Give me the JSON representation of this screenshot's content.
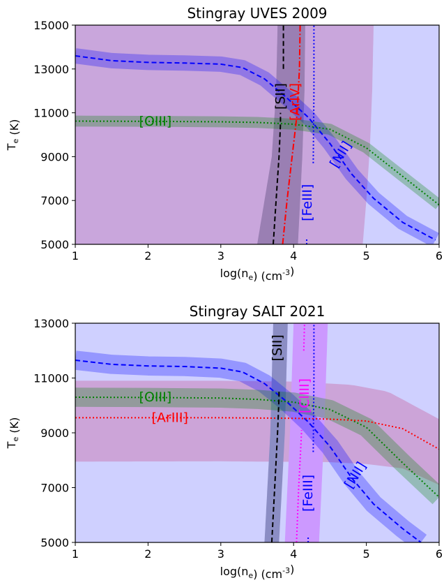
{
  "chart_data": [
    {
      "type": "line",
      "title": "Stingray UVES 2009",
      "xlabel": "log(n_e) (cm^-3)",
      "ylabel": "T_e (K)",
      "xlim": [
        1,
        6
      ],
      "ylim": [
        5000,
        15000
      ],
      "xticks": [
        1,
        2,
        3,
        4,
        5,
        6
      ],
      "yticks": [
        5000,
        7000,
        9000,
        11000,
        13000,
        15000
      ],
      "grid": false,
      "regions": [
        {
          "color": "#cfd0ff",
          "x_from": 1,
          "x_to": 6,
          "y_from": 5000,
          "y_to": 15000
        },
        {
          "color": "#c9a6dc",
          "x_from": 1,
          "y_from": 5000,
          "y_to": 15000,
          "right_edge": [
            [
              4.95,
              5000
            ],
            [
              5.0,
              7000
            ],
            [
              5.05,
              9500
            ],
            [
              5.08,
              12000
            ],
            [
              5.1,
              15000
            ]
          ]
        },
        {
          "color": "#9a7fb3",
          "y_from": 5000,
          "y_to": 15000,
          "left_edge": [
            [
              3.5,
              5000
            ],
            [
              3.7,
              9000
            ],
            [
              3.76,
              12000
            ],
            [
              3.78,
              15000
            ]
          ],
          "right_edge": [
            [
              4.06,
              5000
            ],
            [
              4.12,
              9000
            ],
            [
              4.15,
              12000
            ],
            [
              4.16,
              15000
            ]
          ]
        }
      ],
      "series": [
        {
          "name": "[NII]",
          "color": "#0000ff",
          "style": "dashed",
          "band": 350,
          "x": [
            1,
            1.5,
            2,
            2.5,
            3,
            3.3,
            3.6,
            3.9,
            4.2,
            4.5,
            4.8,
            5.1,
            5.5,
            5.95
          ],
          "y": [
            13600,
            13380,
            13300,
            13270,
            13220,
            13060,
            12550,
            11700,
            10800,
            9600,
            8200,
            7100,
            6000,
            5200
          ]
        },
        {
          "name": "[OIII]",
          "color": "#008000",
          "style": "dotted",
          "band": 250,
          "x": [
            1,
            2,
            3,
            3.5,
            4,
            4.5,
            5,
            5.5,
            6
          ],
          "y": [
            10620,
            10610,
            10590,
            10560,
            10480,
            10250,
            9400,
            8100,
            6800
          ]
        },
        {
          "name": "[SII]",
          "color": "#000000",
          "style": "dashed",
          "x": [
            3.72,
            3.76,
            3.8,
            3.82,
            3.82
          ],
          "y": [
            5000,
            7000,
            9000,
            10500,
            11000
          ]
        },
        {
          "name": "[SII]",
          "color": "#000000",
          "style": "dashed",
          "x": [
            3.86,
            3.86
          ],
          "y": [
            13000,
            15000
          ]
        },
        {
          "name": "[ArIV]",
          "color": "#ff0000",
          "style": "dashdot",
          "x": [
            3.85,
            3.91,
            3.98,
            4.05,
            4.08,
            4.09
          ],
          "y": [
            5000,
            7000,
            9000,
            11000,
            13000,
            15000
          ]
        },
        {
          "name": "[FeIII]",
          "color": "#0000ff",
          "style": "dotted",
          "x": [
            4.27,
            4.28,
            4.28
          ],
          "y": [
            8700,
            12000,
            15000
          ]
        },
        {
          "name": "[FeIII]",
          "color": "#0000ff",
          "style": "dotted",
          "x": [
            4.18,
            4.18
          ],
          "y": [
            5000,
            5300
          ]
        }
      ],
      "annotations": [
        {
          "text": "[OIII]",
          "x": 2.1,
          "y": 10600,
          "color": "#008000",
          "rotation": 0
        },
        {
          "text": "[SII]",
          "x": 3.82,
          "y": 11750,
          "color": "#000000",
          "rotation": -90
        },
        {
          "text": "[ArIV]",
          "x": 4.02,
          "y": 11500,
          "color": "#ff0000",
          "rotation": -90
        },
        {
          "text": "[NII]",
          "x": 4.65,
          "y": 9100,
          "color": "#0000ff",
          "rotation": -58
        },
        {
          "text": "[FeIII]",
          "x": 4.19,
          "y": 6900,
          "color": "#0000ff",
          "rotation": -90
        }
      ]
    },
    {
      "type": "line",
      "title": "Stingray SALT 2021",
      "xlabel": "log(n_e) (cm^-3)",
      "ylabel": "T_e (K)",
      "xlim": [
        1,
        6
      ],
      "ylim": [
        5000,
        13000
      ],
      "xticks": [
        1,
        2,
        3,
        4,
        5,
        6
      ],
      "yticks": [
        5000,
        7000,
        9000,
        11000,
        13000
      ],
      "grid": false,
      "regions": [
        {
          "color": "#cfd0ff",
          "x_from": 1,
          "x_to": 6,
          "y_from": 5000,
          "y_to": 13000
        },
        {
          "color": "#cca4d8",
          "x_from": 1,
          "x_to": 6,
          "top_edge": [
            [
              1,
              10900
            ],
            [
              3,
              10900
            ],
            [
              4,
              10870
            ],
            [
              4.8,
              10750
            ],
            [
              5.3,
              10500
            ],
            [
              6,
              9500
            ]
          ],
          "bottom_edge": [
            [
              1,
              7950
            ],
            [
              3,
              7960
            ],
            [
              4.5,
              7930
            ],
            [
              5,
              7860
            ],
            [
              5.5,
              7700
            ],
            [
              6,
              7100
            ]
          ]
        },
        {
          "color": "#cc99ff",
          "y_from": 5000,
          "y_to": 13000,
          "left_edge": [
            [
              3.88,
              5000
            ],
            [
              3.95,
              9000
            ],
            [
              4.0,
              13000
            ]
          ],
          "right_edge": [
            [
              4.35,
              5000
            ],
            [
              4.42,
              9000
            ],
            [
              4.47,
              13000
            ]
          ]
        },
        {
          "color": "#8b8dc4",
          "y_from": 5000,
          "y_to": 13000,
          "left_edge": [
            [
              3.6,
              5000
            ],
            [
              3.68,
              9000
            ],
            [
              3.72,
              13000
            ]
          ],
          "right_edge": [
            [
              3.8,
              5000
            ],
            [
              3.88,
              9000
            ],
            [
              3.92,
              13000
            ]
          ]
        }
      ],
      "series": [
        {
          "name": "[NII]",
          "color": "#0000ff",
          "style": "dashed",
          "band": 350,
          "x": [
            1,
            1.5,
            2,
            2.5,
            3,
            3.3,
            3.6,
            3.9,
            4.2,
            4.5,
            4.8,
            5.1,
            5.5,
            5.75
          ],
          "y": [
            11650,
            11500,
            11440,
            11420,
            11360,
            11220,
            10800,
            10150,
            9400,
            8500,
            7350,
            6400,
            5500,
            5000
          ]
        },
        {
          "name": "[OIII]",
          "color": "#008000",
          "style": "dotted",
          "band": 350,
          "x": [
            1,
            2,
            3,
            3.5,
            4,
            4.5,
            5,
            5.5,
            6
          ],
          "y": [
            10300,
            10290,
            10270,
            10220,
            10120,
            9850,
            9200,
            7900,
            6650
          ]
        },
        {
          "name": "[ArIII]",
          "color": "#ff0000",
          "style": "dotted",
          "x": [
            1,
            2,
            3,
            4,
            4.5,
            5,
            5.5,
            6
          ],
          "y": [
            9550,
            9550,
            9550,
            9530,
            9500,
            9430,
            9150,
            8400
          ]
        },
        {
          "name": "[SII]",
          "color": "#000000",
          "style": "dashed",
          "x": [
            3.7,
            3.74,
            3.78,
            3.8,
            3.8
          ],
          "y": [
            5000,
            7000,
            9000,
            10300,
            10600
          ]
        },
        {
          "name": "[ClIII]",
          "color": "#ff00ff",
          "style": "dotted",
          "x": [
            4.04,
            4.07,
            4.1,
            4.11
          ],
          "y": [
            5000,
            7000,
            8500,
            9100
          ]
        },
        {
          "name": "[ClIII]",
          "color": "#ff00ff",
          "style": "dotted",
          "x": [
            4.14,
            4.15
          ],
          "y": [
            12000,
            13000
          ]
        },
        {
          "name": "[FeIII]",
          "color": "#0000ff",
          "style": "dotted",
          "x": [
            4.27,
            4.28,
            4.28
          ],
          "y": [
            8300,
            11000,
            13000
          ]
        },
        {
          "name": "[FeIII]",
          "color": "#0000ff",
          "style": "dotted",
          "x": [
            4.2,
            4.2
          ],
          "y": [
            5000,
            5250
          ]
        }
      ],
      "annotations": [
        {
          "text": "[OIII]",
          "x": 2.1,
          "y": 10300,
          "color": "#008000",
          "rotation": 0
        },
        {
          "text": "[ArIII]",
          "x": 2.3,
          "y": 9550,
          "color": "#ff0000",
          "rotation": 0
        },
        {
          "text": "[SII]",
          "x": 3.78,
          "y": 12100,
          "color": "#000000",
          "rotation": -90
        },
        {
          "text": "[ClIII]",
          "x": 4.15,
          "y": 10350,
          "color": "#ff00ff",
          "rotation": -90
        },
        {
          "text": "[NII]",
          "x": 4.85,
          "y": 7450,
          "color": "#0000ff",
          "rotation": -58
        },
        {
          "text": "[FeIII]",
          "x": 4.2,
          "y": 6800,
          "color": "#0000ff",
          "rotation": -90
        }
      ]
    }
  ]
}
